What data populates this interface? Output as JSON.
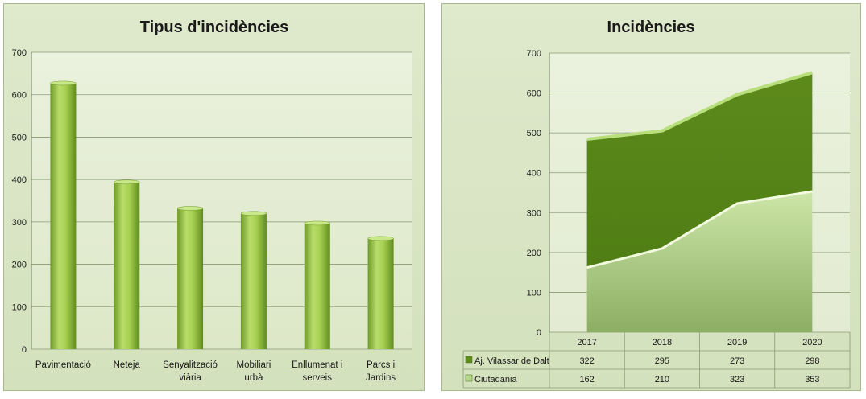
{
  "chart_data": [
    {
      "type": "bar",
      "title": "Tipus d'incidències",
      "categories": [
        [
          "Pavimentació"
        ],
        [
          "Neteja"
        ],
        [
          "Senyalització",
          "viària"
        ],
        [
          "Mobiliari",
          "urbà"
        ],
        [
          "Enllumenat i",
          "serveis"
        ],
        [
          "Parcs i",
          "Jardins"
        ]
      ],
      "values": [
        627,
        394,
        332,
        320,
        297,
        261
      ],
      "ylim": [
        0,
        700
      ],
      "yticks": [
        0,
        100,
        200,
        300,
        400,
        500,
        600,
        700
      ],
      "grid": true,
      "colors": {
        "bar_light": "#d4ec9a",
        "bar_mid": "#9bc83e",
        "bar_dark": "#5f8c1e"
      }
    },
    {
      "type": "area",
      "stacked": true,
      "title": "Incidències",
      "categories": [
        "2017",
        "2018",
        "2019",
        "2020"
      ],
      "series": [
        {
          "name": "Ciutadania",
          "values": [
            162,
            210,
            323,
            353
          ],
          "color": "#b7d88b"
        },
        {
          "name": "Aj. Vilassar de Dalt",
          "values": [
            322,
            295,
            273,
            298
          ],
          "color": "#5f8c1e"
        }
      ],
      "ylim": [
        0,
        700
      ],
      "yticks": [
        0,
        100,
        200,
        300,
        400,
        500,
        600,
        700
      ],
      "grid": true,
      "legend": "data-table-below"
    }
  ]
}
